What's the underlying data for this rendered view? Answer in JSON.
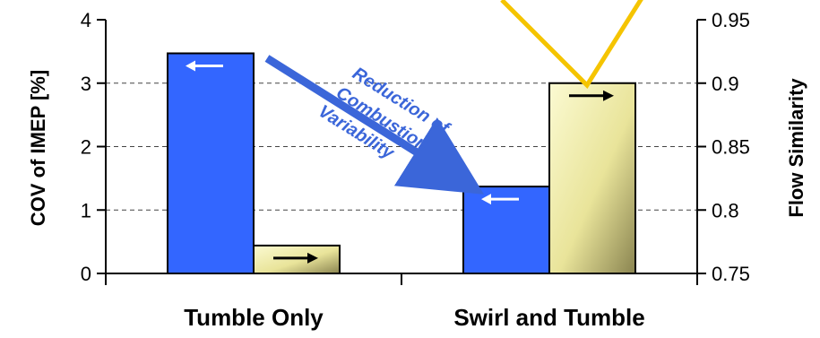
{
  "chart_data": {
    "type": "bar",
    "categories": [
      "Tumble Only",
      "Swirl and Tumble"
    ],
    "y_left": {
      "label": "COV of IMEP [%]",
      "lim": [
        0,
        4
      ],
      "ticks": [
        "0",
        "1",
        "2",
        "3",
        "4"
      ]
    },
    "y_right": {
      "label": "Flow Similarity",
      "lim": [
        0.75,
        0.95
      ],
      "ticks": [
        "0.75",
        "0.8",
        "0.85",
        "0.9",
        "0.95"
      ]
    },
    "series": [
      {
        "axis": "left",
        "values": [
          3.47,
          1.37
        ],
        "color": "#3366ff"
      },
      {
        "axis": "right",
        "values": [
          0.772,
          0.9
        ],
        "color": "#e6e39a"
      }
    ],
    "line_series": {
      "axis": "right",
      "color": "#f2c200",
      "note": "partially visible, exits top of plot"
    },
    "annotation": [
      "Reduction of",
      "Combustion",
      "Variability"
    ],
    "grid": "horizontal dashed",
    "colors": {
      "blue": "#3366ff",
      "yellow": "#e8e49e",
      "line": "#f5c400",
      "arrow_text": "#3b66d9"
    }
  }
}
